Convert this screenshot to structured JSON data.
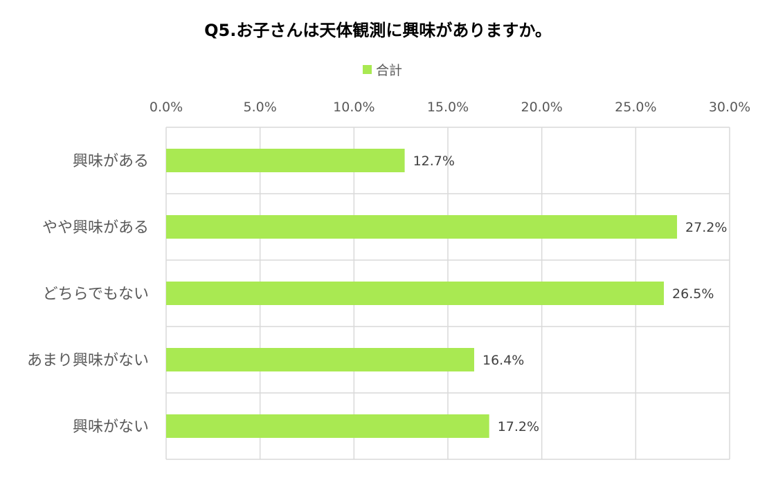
{
  "chart_data": {
    "type": "bar",
    "orientation": "horizontal",
    "title": "Q5.お子さんは天体観測に興味がありますか。",
    "categories": [
      "興味がある",
      "やや興味がある",
      "どちらでもない",
      "あまり興味がない",
      "興味がない"
    ],
    "series": [
      {
        "name": "合計",
        "values": [
          12.7,
          27.2,
          26.5,
          16.4,
          17.2
        ],
        "labels": [
          "12.7%",
          "27.2%",
          "26.5%",
          "16.4%",
          "17.2%"
        ],
        "color": "#a9e952"
      }
    ],
    "xlim": [
      0,
      30
    ],
    "xticks": [
      0,
      5,
      10,
      15,
      20,
      25,
      30
    ],
    "xtick_labels": [
      "0.0%",
      "5.0%",
      "10.0%",
      "15.0%",
      "20.0%",
      "25.0%",
      "30.0%"
    ],
    "x_axis_position": "top",
    "xlabel": "",
    "ylabel": "",
    "grid": true,
    "legend_position": "top-center",
    "colors": {
      "bar": "#a9e952",
      "grid": "#d9d9d9",
      "tick_text": "#595959",
      "title_text": "#000000",
      "value_text": "#404040"
    }
  }
}
